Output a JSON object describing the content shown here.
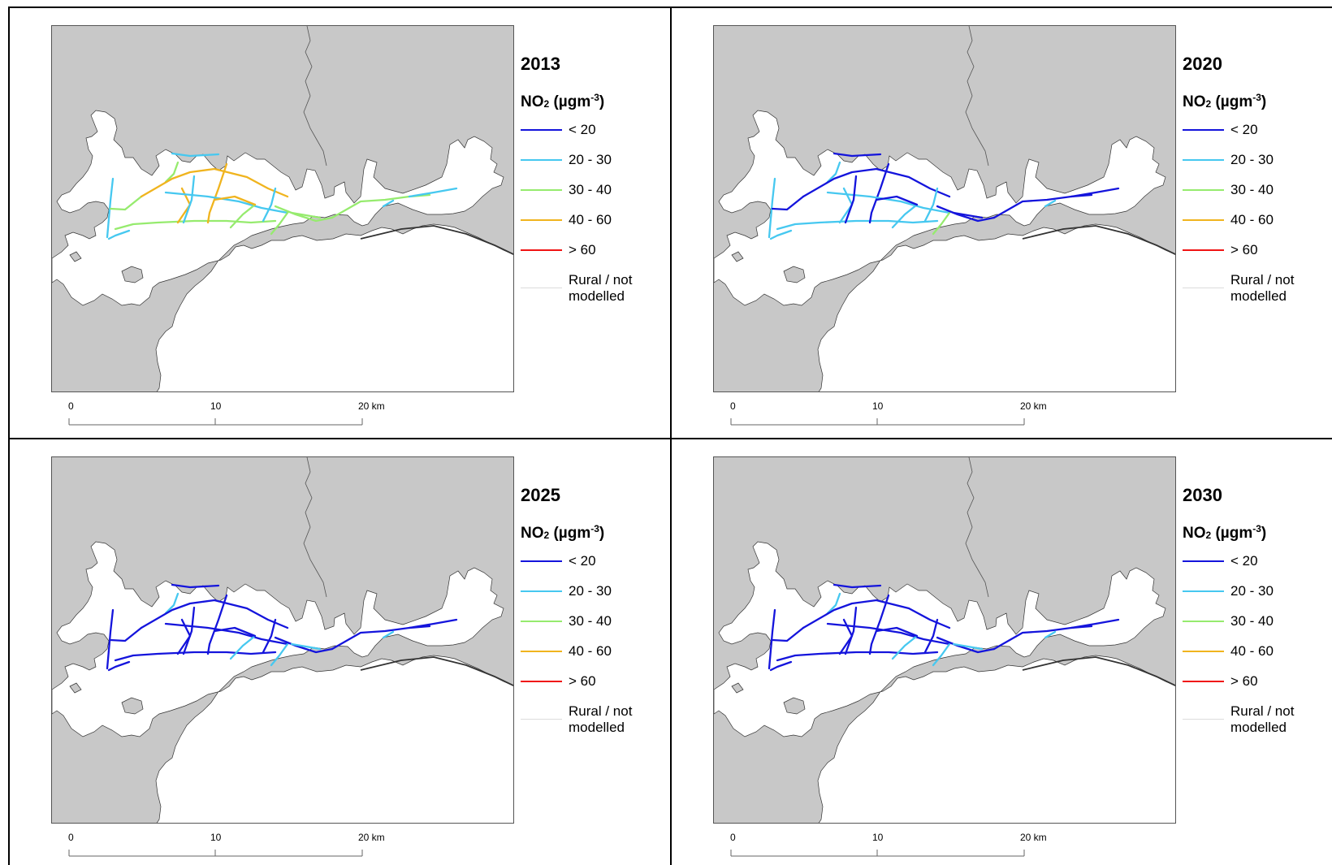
{
  "panels": [
    {
      "year": "2013",
      "roads": [
        "light_blue",
        "light_blue",
        "green",
        "green",
        "green",
        "orange",
        "orange",
        "orange",
        "light_blue",
        "light_blue",
        "green",
        "green",
        "orange",
        "light_blue",
        "green",
        "green",
        "light_blue",
        "green",
        "light_blue",
        "light_blue"
      ]
    },
    {
      "year": "2020",
      "roads": [
        "dark_blue",
        "light_blue",
        "light_blue",
        "dark_blue",
        "light_blue",
        "dark_blue",
        "dark_blue",
        "light_blue",
        "light_blue",
        "dark_blue",
        "light_blue",
        "green",
        "dark_blue",
        "light_blue",
        "dark_blue",
        "dark_blue",
        "light_blue",
        "dark_blue",
        "light_blue",
        "dark_blue"
      ]
    },
    {
      "year": "2025",
      "roads": [
        "dark_blue",
        "dark_blue",
        "light_blue",
        "dark_blue",
        "dark_blue",
        "dark_blue",
        "dark_blue",
        "dark_blue",
        "dark_blue",
        "dark_blue",
        "light_blue",
        "light_blue",
        "dark_blue",
        "dark_blue",
        "dark_blue",
        "light_blue",
        "dark_blue",
        "dark_blue",
        "light_blue",
        "dark_blue"
      ]
    },
    {
      "year": "2030",
      "roads": [
        "dark_blue",
        "dark_blue",
        "light_blue",
        "dark_blue",
        "dark_blue",
        "dark_blue",
        "dark_blue",
        "dark_blue",
        "dark_blue",
        "dark_blue",
        "light_blue",
        "light_blue",
        "dark_blue",
        "dark_blue",
        "dark_blue",
        "light_blue",
        "dark_blue",
        "dark_blue",
        "light_blue",
        "dark_blue"
      ]
    }
  ],
  "legend": {
    "title": "NO",
    "title_sub": "2",
    "title_unit_a": "(µgm",
    "title_sup": "-3",
    "title_unit_b": ")",
    "items": [
      {
        "label": "< 20",
        "color": "#1414dc"
      },
      {
        "label": "20 - 30",
        "color": "#46c8f0"
      },
      {
        "label": "30 - 40",
        "color": "#96eb6e"
      },
      {
        "label": "40 - 60",
        "color": "#f0b41e"
      },
      {
        "label": "> 60",
        "color": "#f01414"
      }
    ],
    "rural_label_1": "Rural / not",
    "rural_label_2": "modelled",
    "rural_color": "#dcdcdc"
  },
  "scalebar": {
    "ticks": [
      "0",
      "10",
      "20 km"
    ]
  },
  "colors": {
    "dark_blue": "#1414dc",
    "light_blue": "#46c8f0",
    "green": "#96eb6e",
    "orange": "#f0b41e",
    "red": "#f01414",
    "land": "#ffffff",
    "background": "#c8c8c8"
  }
}
